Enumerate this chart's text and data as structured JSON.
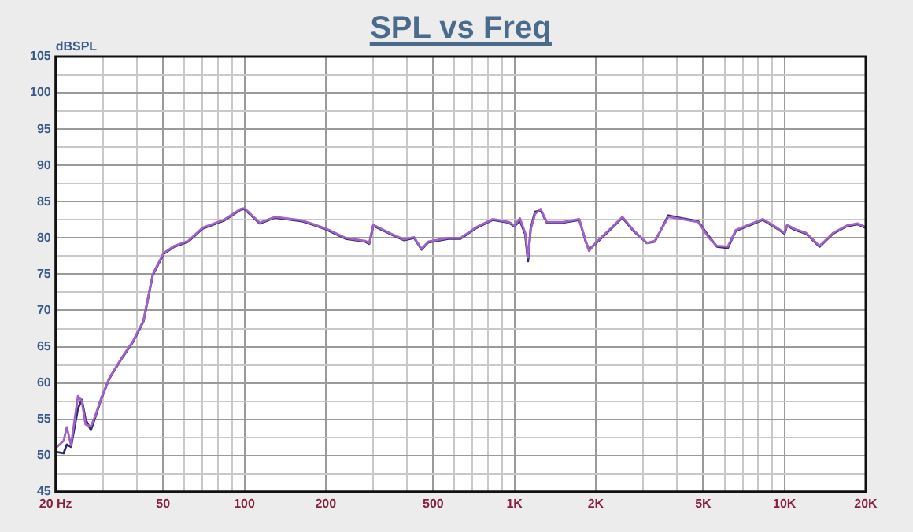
{
  "chart_data": {
    "type": "line",
    "title": "SPL vs Freq",
    "ylabel": "dBSPL",
    "log": "x",
    "grid": true,
    "marker": "none",
    "line_style": "solid",
    "legend": false,
    "xlim": [
      20,
      20000
    ],
    "xticks": [
      {
        "value": 20,
        "label": "20 Hz"
      },
      {
        "value": 30,
        "label": null
      },
      {
        "value": 40,
        "label": null
      },
      50,
      {
        "value": 60,
        "label": null
      },
      {
        "value": 70,
        "label": null
      },
      {
        "value": 80,
        "label": null
      },
      {
        "value": 90,
        "label": null
      },
      100,
      200,
      {
        "value": 300,
        "label": null
      },
      {
        "value": 400,
        "label": null
      },
      500,
      {
        "value": 600,
        "label": null
      },
      {
        "value": 700,
        "label": null
      },
      {
        "value": 800,
        "label": null
      },
      {
        "value": 900,
        "label": null
      },
      {
        "value": 1000,
        "label": "1K"
      },
      {
        "value": 2000,
        "label": "2K"
      },
      {
        "value": 3000,
        "label": null
      },
      {
        "value": 4000,
        "label": null
      },
      {
        "value": 5000,
        "label": "5K"
      },
      {
        "value": 6000,
        "label": null
      },
      {
        "value": 7000,
        "label": null
      },
      {
        "value": 8000,
        "label": null
      },
      {
        "value": 9000,
        "label": null
      },
      {
        "value": 10000,
        "label": "10K"
      },
      {
        "value": 20000,
        "label": "20K"
      }
    ],
    "ylim": [
      45,
      105
    ],
    "yticks": [
      45,
      {
        "value": 47.5,
        "label": null
      },
      50,
      {
        "value": 52.5,
        "label": null
      },
      55,
      {
        "value": 57.5,
        "label": null
      },
      60,
      {
        "value": 62.5,
        "label": null
      },
      65,
      {
        "value": 67.5,
        "label": null
      },
      70,
      {
        "value": 72.5,
        "label": null
      },
      75,
      {
        "value": 77.5,
        "label": null
      },
      80,
      {
        "value": 82.5,
        "label": null
      },
      85,
      {
        "value": 87.5,
        "label": null
      },
      90,
      {
        "value": 92.5,
        "label": null
      },
      95,
      {
        "value": 97.5,
        "label": null
      },
      100,
      {
        "value": 102.5,
        "label": null
      },
      105
    ],
    "x": [
      20,
      21.4,
      22,
      22.8,
      24.2,
      25,
      25.8,
      27,
      28,
      29.5,
      31.6,
      35.3,
      38.6,
      42.3,
      45.8,
      50.2,
      55,
      62,
      70,
      84,
      97,
      100,
      114,
      130,
      164,
      180,
      200,
      237,
      280,
      290,
      300,
      358,
      390,
      425,
      453,
      480,
      570,
      631,
      724,
      832,
      955,
      1000,
      1048,
      1096,
      1123,
      1148,
      1192,
      1250,
      1318,
      1513,
      1738,
      1836,
      1888,
      1995,
      2240,
      2512,
      2754,
      3090,
      3311,
      3715,
      4169,
      4786,
      5248,
      5623,
      6166,
      6607,
      7586,
      8318,
      9290,
      10000,
      10230,
      10960,
      12020,
      13490,
      15140,
      16980,
      18620,
      20000
    ],
    "series": [
      {
        "color": "#a062c4",
        "values": [
          51,
          52,
          53.9,
          51.4,
          58.2,
          57.5,
          54.3,
          54,
          55.4,
          57.9,
          60.7,
          63.6,
          65.7,
          68.6,
          75,
          77.9,
          78.9,
          79.6,
          81.4,
          82.5,
          84,
          84.1,
          82.1,
          82.9,
          82.4,
          81.9,
          81.3,
          80,
          79.6,
          79.3,
          81.8,
          80.4,
          79.8,
          80.1,
          78.5,
          79.5,
          80,
          80,
          81.5,
          82.6,
          82.2,
          81.7,
          82.7,
          80.7,
          77.3,
          81.1,
          83.3,
          84,
          82.2,
          82.2,
          82.6,
          79.6,
          78.2,
          79.3,
          81.1,
          82.9,
          81.1,
          79.3,
          79.6,
          82.9,
          82.6,
          82.2,
          80,
          78.9,
          78.8,
          81.1,
          82,
          82.6,
          81.5,
          80.7,
          81.8,
          81.2,
          80.7,
          78.9,
          80.7,
          81.7,
          82,
          81.5
        ]
      },
      {
        "color": "#2e2c6c",
        "values": [
          50.5,
          50.3,
          51.5,
          51.2,
          56.5,
          57.7,
          55,
          53.5,
          55.2,
          57.8,
          60.6,
          63.5,
          65.6,
          68.5,
          74.9,
          77.8,
          78.8,
          79.5,
          81.3,
          82.4,
          83.9,
          84,
          82,
          82.8,
          82.3,
          81.8,
          81.2,
          79.9,
          79.5,
          79.2,
          81.7,
          80.3,
          79.7,
          80,
          78.4,
          79.4,
          79.9,
          79.9,
          81.4,
          82.5,
          82.1,
          81.6,
          82.4,
          80.5,
          76.8,
          81.3,
          83.6,
          83.8,
          82.1,
          82.1,
          82.5,
          79.5,
          78.4,
          79.2,
          81,
          82.8,
          81,
          79.3,
          79.5,
          83.1,
          82.7,
          82.3,
          80.2,
          78.8,
          78.6,
          81,
          81.9,
          82.5,
          81.4,
          80.6,
          81.7,
          81.1,
          80.6,
          78.8,
          80.6,
          81.6,
          81.9,
          81.4
        ]
      }
    ]
  }
}
